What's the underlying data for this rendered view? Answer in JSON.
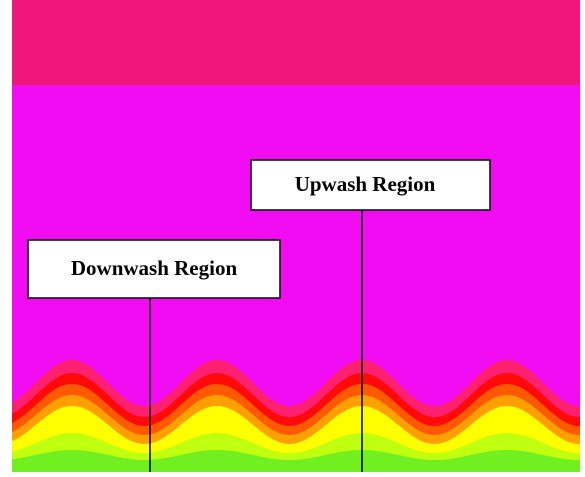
{
  "annotations": [
    {
      "label": "Upwash Region"
    },
    {
      "label": "Downwash Region"
    }
  ]
}
